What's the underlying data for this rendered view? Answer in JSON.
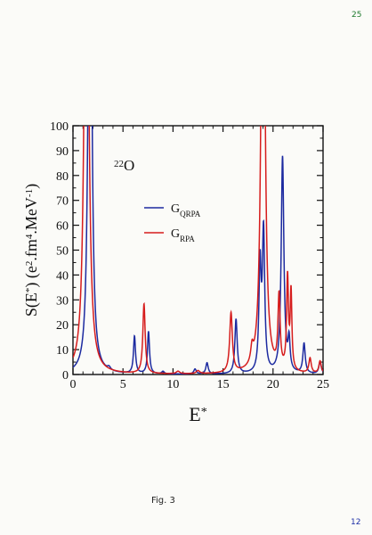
{
  "page": {
    "top_note": "25",
    "bottom_note": "12",
    "caption": "Fig. 3"
  },
  "chart_data": {
    "type": "line",
    "title": "",
    "annotation": {
      "base": "O",
      "mass_number": "22"
    },
    "xlabel": {
      "base": "E",
      "sup": "*"
    },
    "ylabel_parts": [
      {
        "t": "S(E",
        "s": "n"
      },
      {
        "t": "*",
        "s": "sup"
      },
      {
        "t": ") (e",
        "s": "n"
      },
      {
        "t": "2",
        "s": "sup"
      },
      {
        "t": ".fm",
        "s": "n"
      },
      {
        "t": "4",
        "s": "sup"
      },
      {
        "t": ".MeV",
        "s": "n"
      },
      {
        "t": "-1",
        "s": "sup"
      },
      {
        "t": ")",
        "s": "n"
      }
    ],
    "xlim": [
      0,
      25
    ],
    "ylim": [
      0,
      100
    ],
    "xticks": [
      0,
      5,
      10,
      15,
      20,
      25
    ],
    "yticks": [
      0,
      10,
      20,
      30,
      40,
      50,
      60,
      70,
      80,
      90,
      100
    ],
    "grid": false,
    "legend_position": "upper-middle",
    "series": [
      {
        "name_base": "G",
        "name_sub": "QRPA",
        "color": "#1c2aa0",
        "peaks": [
          {
            "x": 1.7,
            "height": 260,
            "width": 0.18
          },
          {
            "x": 3.6,
            "height": 1.2,
            "width": 0.18
          },
          {
            "x": 6.15,
            "height": 15,
            "width": 0.12
          },
          {
            "x": 7.55,
            "height": 17,
            "width": 0.12
          },
          {
            "x": 9.0,
            "height": 1.0,
            "width": 0.15
          },
          {
            "x": 12.2,
            "height": 2.0,
            "width": 0.15
          },
          {
            "x": 13.4,
            "height": 4.5,
            "width": 0.14
          },
          {
            "x": 16.3,
            "height": 22,
            "width": 0.14
          },
          {
            "x": 18.7,
            "height": 42,
            "width": 0.13
          },
          {
            "x": 19.05,
            "height": 56,
            "width": 0.14
          },
          {
            "x": 20.95,
            "height": 87,
            "width": 0.16
          },
          {
            "x": 21.6,
            "height": 12,
            "width": 0.12
          },
          {
            "x": 23.1,
            "height": 12,
            "width": 0.14
          },
          {
            "x": 24.7,
            "height": 5,
            "width": 0.14
          }
        ]
      },
      {
        "name_base": "G",
        "name_sub": "RPA",
        "color": "#d61c1c",
        "peaks": [
          {
            "x": 1.35,
            "height": 260,
            "width": 0.22
          },
          {
            "x": 7.1,
            "height": 28,
            "width": 0.14
          },
          {
            "x": 10.5,
            "height": 1.0,
            "width": 0.2
          },
          {
            "x": 12.5,
            "height": 1.2,
            "width": 0.2
          },
          {
            "x": 15.8,
            "height": 24,
            "width": 0.16
          },
          {
            "x": 17.9,
            "height": 6,
            "width": 0.15
          },
          {
            "x": 19.0,
            "height": 240,
            "width": 0.2
          },
          {
            "x": 20.6,
            "height": 29,
            "width": 0.13
          },
          {
            "x": 21.45,
            "height": 37,
            "width": 0.11
          },
          {
            "x": 21.8,
            "height": 31,
            "width": 0.1
          },
          {
            "x": 23.7,
            "height": 6,
            "width": 0.14
          },
          {
            "x": 24.7,
            "height": 5,
            "width": 0.14
          }
        ]
      }
    ]
  }
}
